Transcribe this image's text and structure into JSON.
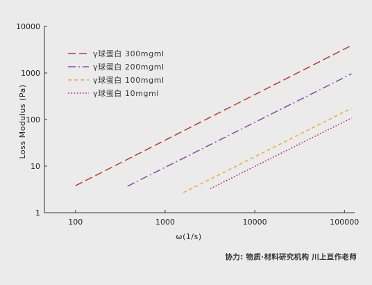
{
  "chart_data": {
    "type": "line",
    "title": "",
    "xlabel": "ω(1/s)",
    "ylabel": "Loss   Modulus  (Pa)",
    "x_scale": "log",
    "y_scale": "log",
    "xlim": [
      45,
      130000
    ],
    "ylim": [
      1,
      10000
    ],
    "x_ticks": [
      "100",
      "1000",
      "10000",
      "100000"
    ],
    "y_ticks": [
      "1",
      "10",
      "100",
      "1000",
      "10000"
    ],
    "grid": false,
    "legend_position": "top-left",
    "series": [
      {
        "name": "γ球蛋白 300mgml",
        "color": "#c0392b",
        "dash": "long-dash",
        "x": [
          100,
          120000
        ],
        "y": [
          3.8,
          3900
        ]
      },
      {
        "name": "γ球蛋白 200mgml",
        "color": "#8e44ad",
        "dash": "dash-dot",
        "x": [
          380,
          120000
        ],
        "y": [
          3.7,
          960
        ]
      },
      {
        "name": "γ球蛋白 100mgml",
        "color": "#f0a830",
        "dash": "short-dash",
        "x": [
          1600,
          120000
        ],
        "y": [
          2.7,
          175
        ]
      },
      {
        "name": "γ球蛋白 10mgml",
        "color": "#c0145a",
        "dash": "dotted",
        "x": [
          3200,
          120000
        ],
        "y": [
          3.3,
          108
        ]
      }
    ]
  },
  "footer": {
    "credit": "协力: 物质·材料研究机构    川上亘作老师"
  }
}
